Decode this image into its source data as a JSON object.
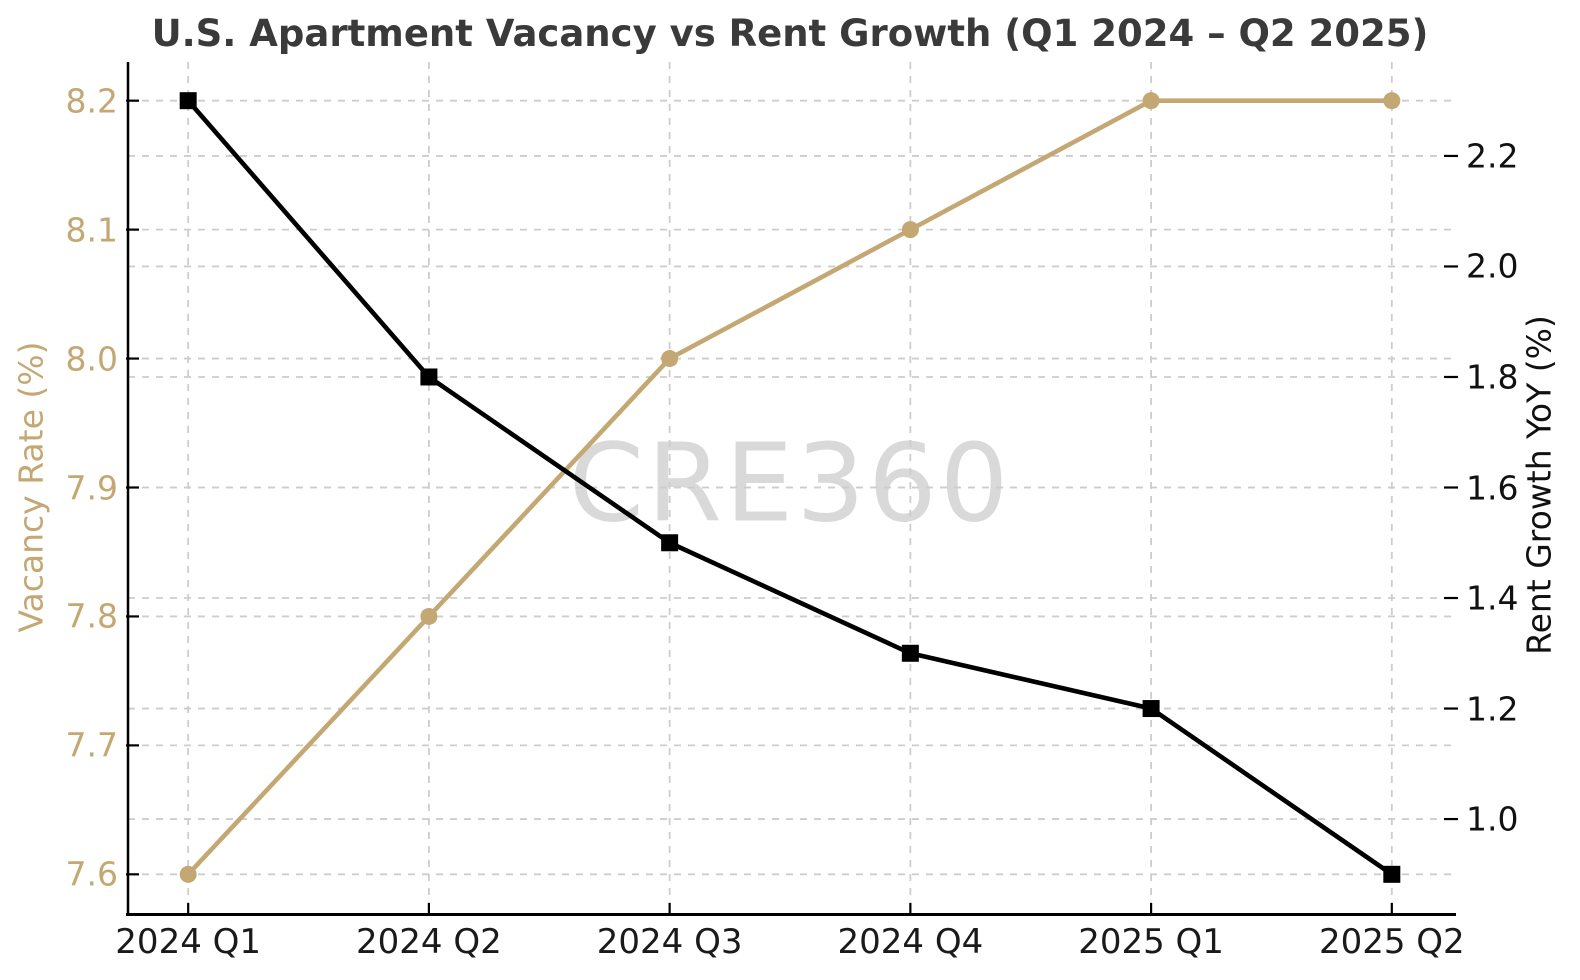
{
  "title": "U.S. Apartment Vacancy vs Rent Growth (Q1 2024 – Q2 2025)",
  "watermark": "CRE360",
  "colors": {
    "vacancy_tan": "#C4A874",
    "rent_black": "#000000",
    "grid": "#cdcdcd",
    "title_text": "#3a3a3a",
    "tick_text_dark": "#1a1a1a",
    "watermark_gray": "#d9d9d9",
    "background": "#ffffff"
  },
  "chart_data": {
    "type": "line",
    "title": "U.S. Apartment Vacancy vs Rent Growth (Q1 2024 – Q2 2025)",
    "categories": [
      "2024 Q1",
      "2024 Q2",
      "2024 Q3",
      "2024 Q4",
      "2025 Q1",
      "2025 Q2"
    ],
    "series": [
      {
        "name": "Vacancy Rate (%)",
        "axis": "left",
        "color": "#C4A874",
        "marker": "circle",
        "values": [
          7.6,
          7.8,
          8.0,
          8.1,
          8.2,
          8.2
        ]
      },
      {
        "name": "Rent Growth YoY (%)",
        "axis": "right",
        "color": "#000000",
        "marker": "square",
        "values": [
          2.3,
          1.8,
          1.5,
          1.3,
          1.2,
          0.9
        ]
      }
    ],
    "left_axis": {
      "label": "Vacancy Rate (%)",
      "tick_labels": [
        "8.2",
        "8.1",
        "8.0",
        "7.9",
        "7.8",
        "7.7",
        "7.6"
      ],
      "range": [
        7.57,
        8.23
      ],
      "color": "#C4A874"
    },
    "right_axis": {
      "label": "Rent Growth YoY (%)",
      "tick_labels": [
        "2.2",
        "2.0",
        "1.8",
        "1.6",
        "1.4",
        "1.2",
        "1.0"
      ],
      "range": [
        0.83,
        2.37
      ],
      "color": "#000000"
    },
    "x_axis": {
      "tick_labels": [
        "2024 Q1",
        "2024 Q2",
        "2024 Q3",
        "2024 Q4",
        "2025 Q1",
        "2025 Q2"
      ],
      "range": [
        -0.25,
        5.25
      ]
    },
    "grid": "dashed, both axes, horizontal and vertical",
    "legend": "none",
    "watermark": "CRE360"
  }
}
